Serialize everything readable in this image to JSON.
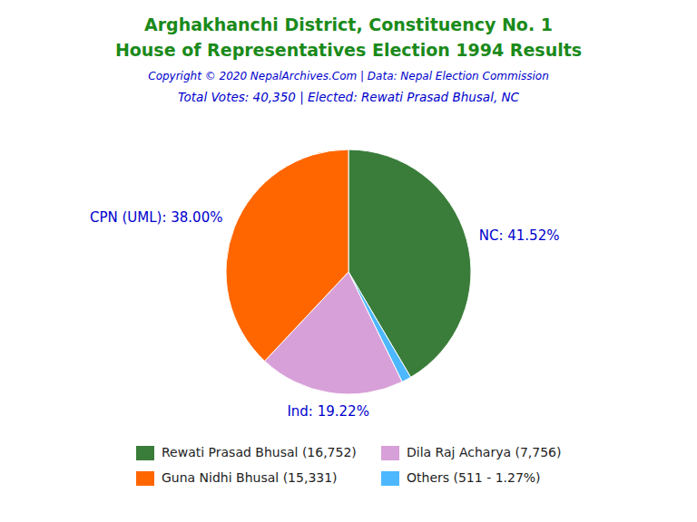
{
  "chart_data": {
    "type": "pie",
    "title": "Arghakhanchi District, Constituency No. 1",
    "subtitle": "House of Representatives Election 1994 Results",
    "title_color": "#1a8a1a",
    "annotations": [
      {
        "text": "Copyright © 2020 NepalArchives.Com | Data: Nepal Election Commission",
        "color": "#0000cc"
      },
      {
        "text": "Total Votes: 40,350 | Elected: Rewati Prasad Bhusal, NC",
        "color": "#0000cc"
      }
    ],
    "categories": [
      "NC",
      "Others",
      "Ind",
      "CPN (UML)"
    ],
    "values": [
      41.52,
      1.27,
      19.22,
      38.0
    ],
    "colors": [
      "#3a7d3a",
      "#4db8ff",
      "#d8a0d8",
      "#ff6600"
    ],
    "data_labels": true,
    "value_labels": [
      "NC: 41.52%",
      null,
      "Ind: 19.22%",
      "CPN (UML): 38.00%"
    ],
    "label_color": "#0000cc",
    "legend": "bottom",
    "legend_items": [
      {
        "label": "Rewati Prasad Bhusal (16,752)",
        "color": "#3a7d3a"
      },
      {
        "label": "Guna Nidhi Bhusal (15,331)",
        "color": "#ff6600"
      },
      {
        "label": "Dila Raj Acharya (7,756)",
        "color": "#d8a0d8"
      },
      {
        "label": "Others (511 - 1.27%)",
        "color": "#4db8ff"
      }
    ]
  }
}
